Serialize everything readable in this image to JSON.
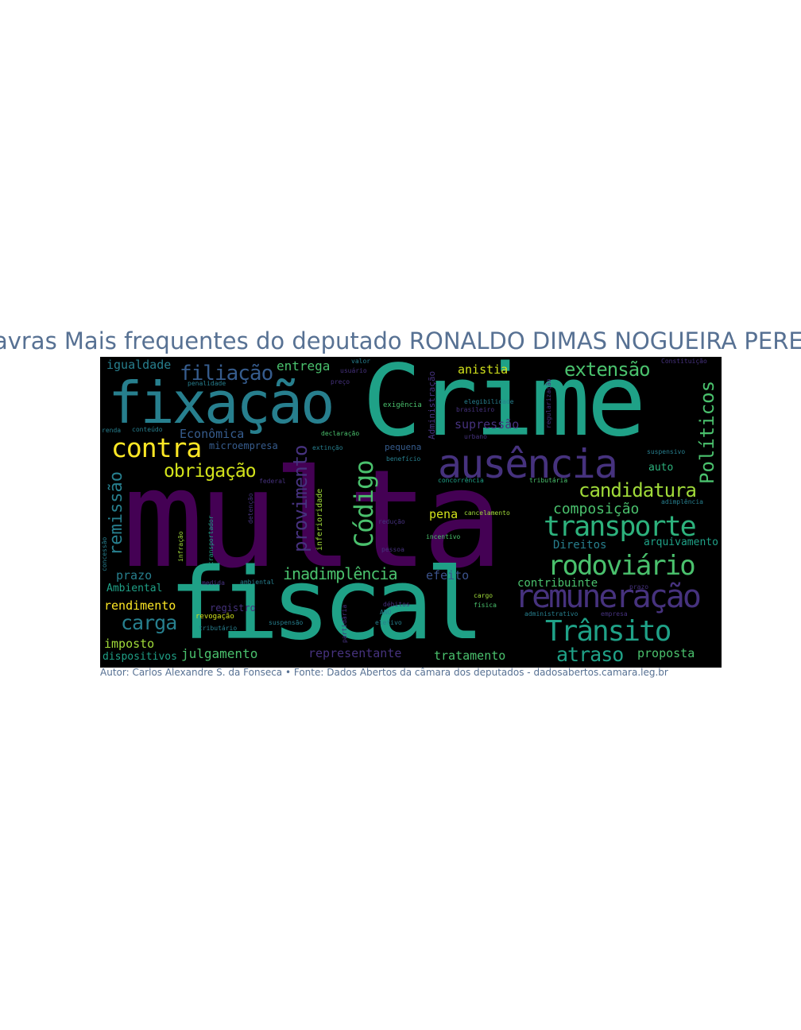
{
  "title": "Palavras Mais frequentes do deputado RONALDO DIMAS NOGUEIRA PEREIRA",
  "caption": "Autor: Carlos Alexandre S. da Fonseca • Fonte: Dados Abertos da câmara dos deputados - dadosabertos.camara.leg.br",
  "colors": {
    "background": "#000000",
    "title": "#577193",
    "purple": "#440154",
    "indigo": "#46327e",
    "blue": "#365c8d",
    "teal": "#277f8e",
    "green": "#1fa187",
    "lime": "#4ac16d",
    "yellowgreen": "#a0da39",
    "yellow": "#fde725"
  },
  "words": [
    {
      "text": "multa",
      "color": "#440154"
    },
    {
      "text": "Crime",
      "color": "#1fa187"
    },
    {
      "text": "fiscal",
      "color": "#1fa187"
    },
    {
      "text": "fixação",
      "color": "#277f8e"
    },
    {
      "text": "ausência",
      "color": "#46327e"
    },
    {
      "text": "remuneração",
      "color": "#46327e"
    },
    {
      "text": "transporte",
      "color": "#2db27d"
    },
    {
      "text": "rodoviário",
      "color": "#4ac16d"
    },
    {
      "text": "Trânsito",
      "color": "#1fa187"
    },
    {
      "text": "contra",
      "color": "#fde725"
    },
    {
      "text": "Código",
      "color": "#4ac16d"
    },
    {
      "text": "candidatura",
      "color": "#a0da39"
    },
    {
      "text": "Políticos",
      "color": "#4ac16d"
    },
    {
      "text": "provimento",
      "color": "#46327e"
    },
    {
      "text": "filiação",
      "color": "#365c8d"
    },
    {
      "text": "extensão",
      "color": "#4ac16d"
    },
    {
      "text": "obrigação",
      "color": "#d2e21b"
    },
    {
      "text": "carga",
      "color": "#277f8e"
    },
    {
      "text": "remissão",
      "color": "#277f8e"
    },
    {
      "text": "atraso",
      "color": "#1fa187"
    },
    {
      "text": "inadimplência",
      "color": "#4ac16d"
    },
    {
      "text": "composição",
      "color": "#4ac16d"
    },
    {
      "text": "igualdade",
      "color": "#277f8e"
    },
    {
      "text": "entrega",
      "color": "#4ac16d"
    },
    {
      "text": "anistia",
      "color": "#d2e21b"
    },
    {
      "text": "Econômica",
      "color": "#365c8d"
    },
    {
      "text": "supressão",
      "color": "#46327e"
    },
    {
      "text": "microempresa",
      "color": "#365c8d"
    },
    {
      "text": "pena",
      "color": "#d2e21b"
    },
    {
      "text": "Direitos",
      "color": "#277f8e"
    },
    {
      "text": "arquivamento",
      "color": "#1fa187"
    },
    {
      "text": "auto",
      "color": "#2db27d"
    },
    {
      "text": "prazo",
      "color": "#277f8e"
    },
    {
      "text": "Ambiental",
      "color": "#1fa187"
    },
    {
      "text": "efeito",
      "color": "#3b528b"
    },
    {
      "text": "contribuinte",
      "color": "#4ac16d"
    },
    {
      "text": "rendimento",
      "color": "#fde725"
    },
    {
      "text": "imposto",
      "color": "#a0da39"
    },
    {
      "text": "dispositivos",
      "color": "#1fa187"
    },
    {
      "text": "julgamento",
      "color": "#4ac16d"
    },
    {
      "text": "representante",
      "color": "#46327e"
    },
    {
      "text": "tratamento",
      "color": "#4ac16d"
    },
    {
      "text": "proposta",
      "color": "#4ac16d"
    },
    {
      "text": "registro",
      "color": "#46327e"
    },
    {
      "text": "revogação",
      "color": "#d2e21b"
    },
    {
      "text": "tributário",
      "color": "#277f8e"
    },
    {
      "text": "suspensão",
      "color": "#277f8e"
    },
    {
      "text": "partidária",
      "color": "#46327e"
    },
    {
      "text": "eletivo",
      "color": "#277f8e"
    },
    {
      "text": "inferioridade",
      "color": "#a0da39"
    },
    {
      "text": "Administração",
      "color": "#46327e"
    },
    {
      "text": "exigência",
      "color": "#4ac16d"
    },
    {
      "text": "pequena",
      "color": "#365c8d"
    },
    {
      "text": "benefício",
      "color": "#277f8e"
    },
    {
      "text": "concorrência",
      "color": "#1fa187"
    },
    {
      "text": "tributária",
      "color": "#4ac16d"
    },
    {
      "text": "incentivo",
      "color": "#4ac16d"
    },
    {
      "text": "redução",
      "color": "#46327e"
    },
    {
      "text": "cancelamento",
      "color": "#a0da39"
    },
    {
      "text": "adimplência",
      "color": "#277f8e"
    },
    {
      "text": "extinção",
      "color": "#277f8e"
    },
    {
      "text": "declaração",
      "color": "#4ac16d"
    },
    {
      "text": "urbano",
      "color": "#46327e"
    },
    {
      "text": "suspensivo",
      "color": "#277f8e"
    },
    {
      "text": "regularização",
      "color": "#46327e"
    },
    {
      "text": "elegibilidade",
      "color": "#277f8e"
    },
    {
      "text": "brasileiro",
      "color": "#46327e"
    },
    {
      "text": "valor",
      "color": "#277f8e"
    },
    {
      "text": "usuário",
      "color": "#46327e"
    },
    {
      "text": "preço",
      "color": "#46327e"
    },
    {
      "text": "penalidade",
      "color": "#277f8e"
    },
    {
      "text": "Constituição",
      "color": "#46327e"
    },
    {
      "text": "renda",
      "color": "#277f8e"
    },
    {
      "text": "conteúdo",
      "color": "#277f8e"
    },
    {
      "text": "concessão",
      "color": "#277f8e"
    },
    {
      "text": "infração",
      "color": "#a0da39"
    },
    {
      "text": "transportador",
      "color": "#1fa187"
    },
    {
      "text": "detenção",
      "color": "#46327e"
    },
    {
      "text": "pessoa",
      "color": "#46327e"
    },
    {
      "text": "cargo",
      "color": "#a0da39"
    },
    {
      "text": "física",
      "color": "#4ac16d"
    },
    {
      "text": "administrativo",
      "color": "#277f8e"
    },
    {
      "text": "empresa",
      "color": "#46327e"
    },
    {
      "text": "débitos",
      "color": "#46327e"
    },
    {
      "text": "ANO",
      "color": "#277f8e"
    },
    {
      "text": "federal",
      "color": "#46327e"
    },
    {
      "text": "prazo",
      "color": "#46327e"
    },
    {
      "text": "medida",
      "color": "#46327e"
    },
    {
      "text": "ambiental",
      "color": "#277f8e"
    }
  ]
}
